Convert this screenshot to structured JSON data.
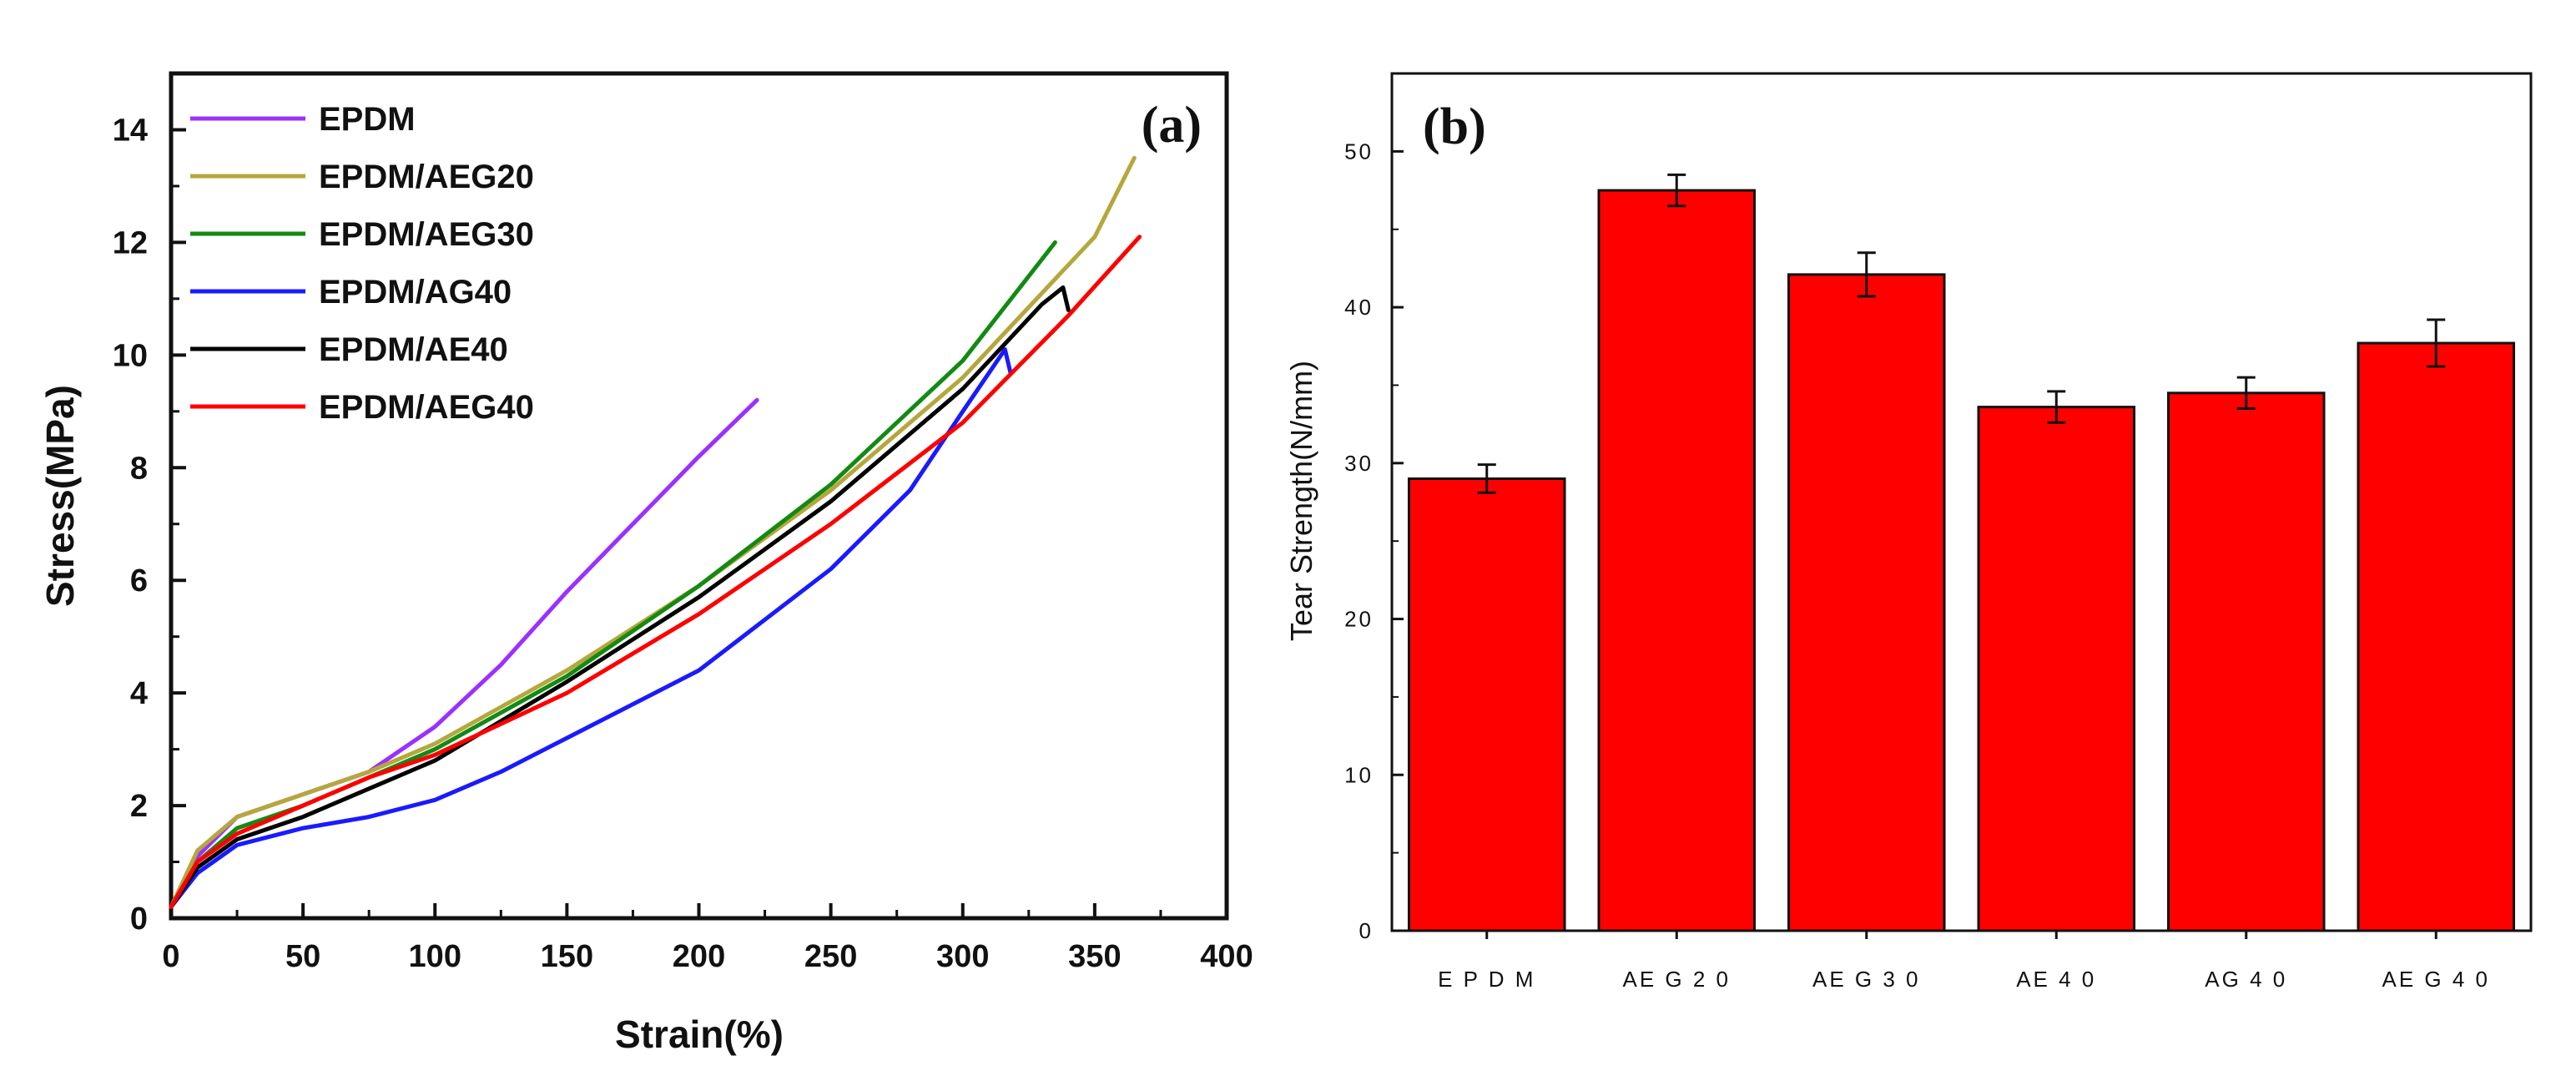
{
  "chart_data": [
    {
      "panel": "(a)",
      "type": "line",
      "xlabel": "Strain(%)",
      "ylabel": "Stress(MPa)",
      "xlim": [
        0,
        400
      ],
      "ylim": [
        0,
        15
      ],
      "xticks": [
        "0",
        "50",
        "100",
        "150",
        "200",
        "250",
        "300",
        "350",
        "400"
      ],
      "yticks": [
        "0",
        "2",
        "4",
        "6",
        "8",
        "10",
        "12",
        "14"
      ],
      "legend_position": "top-left",
      "series": [
        {
          "name": "EPDM",
          "color": "#9b30ff",
          "points": [
            [
              0,
              0.2
            ],
            [
              10,
              1.1
            ],
            [
              25,
              1.8
            ],
            [
              50,
              2.2
            ],
            [
              75,
              2.6
            ],
            [
              100,
              3.4
            ],
            [
              125,
              4.5
            ],
            [
              150,
              5.8
            ],
            [
              175,
              7.0
            ],
            [
              200,
              8.2
            ],
            [
              222,
              9.2
            ]
          ]
        },
        {
          "name": "EPDM/AEG20",
          "color": "#b5a73b",
          "points": [
            [
              0,
              0.2
            ],
            [
              10,
              1.2
            ],
            [
              25,
              1.8
            ],
            [
              50,
              2.2
            ],
            [
              75,
              2.6
            ],
            [
              100,
              3.1
            ],
            [
              150,
              4.4
            ],
            [
              200,
              5.9
            ],
            [
              250,
              7.6
            ],
            [
              300,
              9.6
            ],
            [
              350,
              12.1
            ],
            [
              365,
              13.5
            ]
          ]
        },
        {
          "name": "EPDM/AEG30",
          "color": "#138a13",
          "points": [
            [
              0,
              0.2
            ],
            [
              10,
              1.0
            ],
            [
              25,
              1.6
            ],
            [
              50,
              2.0
            ],
            [
              75,
              2.5
            ],
            [
              100,
              3.0
            ],
            [
              150,
              4.3
            ],
            [
              200,
              5.9
            ],
            [
              250,
              7.7
            ],
            [
              300,
              9.9
            ],
            [
              335,
              12.0
            ]
          ]
        },
        {
          "name": "EPDM/AG40",
          "color": "#1a1aff",
          "points": [
            [
              0,
              0.2
            ],
            [
              10,
              0.8
            ],
            [
              25,
              1.3
            ],
            [
              50,
              1.6
            ],
            [
              75,
              1.8
            ],
            [
              100,
              2.1
            ],
            [
              125,
              2.6
            ],
            [
              150,
              3.2
            ],
            [
              200,
              4.4
            ],
            [
              250,
              6.2
            ],
            [
              280,
              7.6
            ],
            [
              300,
              9.0
            ],
            [
              316,
              10.1
            ],
            [
              318,
              9.7
            ]
          ]
        },
        {
          "name": "EPDM/AE40",
          "color": "#000000",
          "points": [
            [
              0,
              0.2
            ],
            [
              10,
              0.9
            ],
            [
              25,
              1.4
            ],
            [
              50,
              1.8
            ],
            [
              75,
              2.3
            ],
            [
              100,
              2.8
            ],
            [
              150,
              4.2
            ],
            [
              200,
              5.7
            ],
            [
              250,
              7.4
            ],
            [
              300,
              9.4
            ],
            [
              330,
              10.9
            ],
            [
              338,
              11.2
            ],
            [
              340,
              10.8
            ]
          ]
        },
        {
          "name": "EPDM/AEG40",
          "color": "#ff0000",
          "points": [
            [
              0,
              0.2
            ],
            [
              10,
              1.0
            ],
            [
              25,
              1.5
            ],
            [
              50,
              2.0
            ],
            [
              75,
              2.5
            ],
            [
              100,
              2.9
            ],
            [
              150,
              4.0
            ],
            [
              200,
              5.4
            ],
            [
              250,
              7.0
            ],
            [
              300,
              8.8
            ],
            [
              340,
              10.7
            ],
            [
              367,
              12.1
            ]
          ]
        }
      ]
    },
    {
      "panel": "(b)",
      "type": "bar",
      "ylabel": "Tear Strength(N/mm)",
      "ylim": [
        0,
        55
      ],
      "yticks": [
        "0",
        "10",
        "20",
        "30",
        "40",
        "50"
      ],
      "categories": [
        "E P D M",
        "AE G 2 0",
        "AE G 3 0",
        "AE 4 0",
        "AG 4 0",
        "AE G 4 0"
      ],
      "values": [
        29.0,
        47.5,
        42.1,
        33.6,
        34.5,
        37.7
      ],
      "errors": [
        0.9,
        1.0,
        1.4,
        1.0,
        1.0,
        1.5
      ],
      "bar_color": "#ff0000"
    }
  ]
}
